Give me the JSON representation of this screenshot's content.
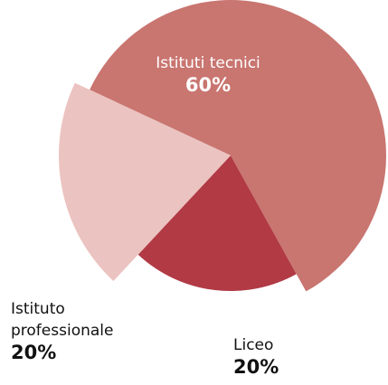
{
  "chart_data": {
    "type": "pie",
    "categories": [
      "Istituti tecnici",
      "Liceo",
      "Istituto professionale"
    ],
    "values": [
      60,
      20,
      20
    ],
    "value_labels": [
      "60%",
      "20%",
      "20%"
    ],
    "colors": [
      "#c97570",
      "#b13a45",
      "#ebc3c0"
    ]
  }
}
